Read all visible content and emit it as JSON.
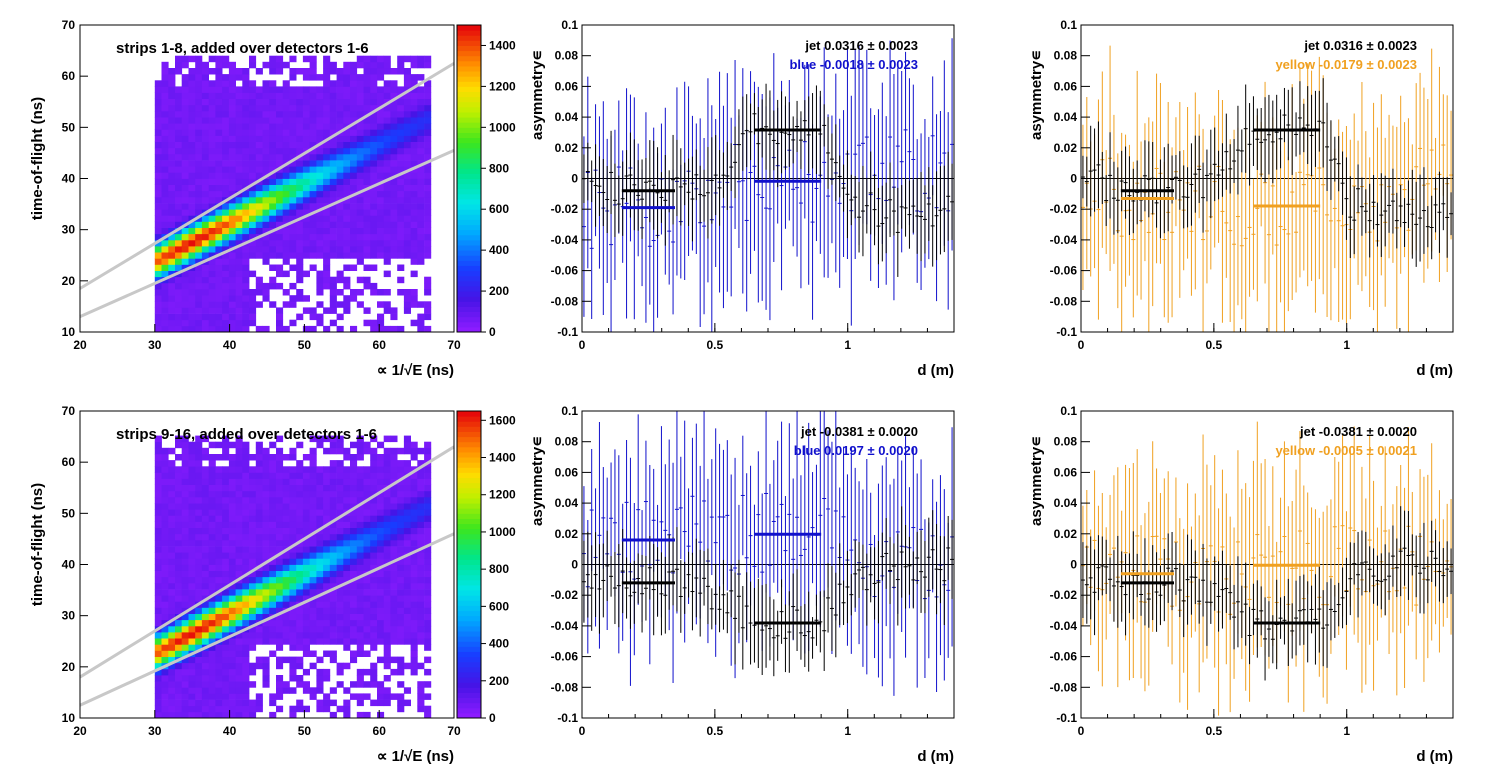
{
  "colors": {
    "blue": "#1010cc",
    "yellow": "#f0a020",
    "black": "#000000",
    "band_lines": "#c8c8c8",
    "hist_floor": "#8c1cff"
  },
  "chart_data": [
    {
      "type": "heatmap",
      "title": "strips 1-8, added over detectors 1-6",
      "xlabel": "∝ 1/√E (ns)",
      "ylabel": "time-of-flight (ns)",
      "xlim": [
        20,
        70
      ],
      "ylim": [
        10,
        70
      ],
      "x_ticks": [
        "20",
        "30",
        "40",
        "50",
        "60",
        "70"
      ],
      "y_ticks": [
        "10",
        "20",
        "30",
        "40",
        "50",
        "60",
        "70"
      ],
      "colorbar": {
        "min": 0,
        "max": 1500,
        "ticks": [
          "0",
          "200",
          "400",
          "600",
          "800",
          "1000",
          "1200",
          "1400"
        ]
      },
      "bands": [
        {
          "x": [
            20,
            70
          ],
          "y": [
            18.5,
            62.5
          ]
        },
        {
          "x": [
            20,
            70
          ],
          "y": [
            13.0,
            45.5
          ]
        }
      ],
      "peak": {
        "x": 35,
        "y": 27.5,
        "value": 1500
      },
      "x_range_filled": [
        30,
        66
      ],
      "y_range_filled": [
        10,
        63
      ]
    },
    {
      "type": "scatter",
      "xlabel": "d (m)",
      "ylabel": "asymmetry∊",
      "xlim": [
        0,
        1.4
      ],
      "ylim": [
        -0.1,
        0.1
      ],
      "x_ticks": [
        "0",
        "0.5",
        "1"
      ],
      "y_ticks": [
        "-0.1",
        "-0.08",
        "-0.06",
        "-0.04",
        "-0.02",
        "0",
        "0.02",
        "0.04",
        "0.06",
        "0.08",
        "0.1"
      ],
      "legend": [
        "jet  0.0316 ± 0.0023",
        "blue  -0.0018 ± 0.0023"
      ],
      "series": [
        {
          "name": "jet",
          "color_key": "black",
          "err": 0.024,
          "plateaus": [
            {
              "x": [
                0.15,
                0.35
              ],
              "y": -0.008
            },
            {
              "x": [
                0.65,
                0.9
              ],
              "y": 0.0316
            }
          ],
          "profile": [
            [
              0,
              0.005
            ],
            [
              0.1,
              -0.005
            ],
            [
              0.15,
              -0.008
            ],
            [
              0.35,
              -0.008
            ],
            [
              0.5,
              0.0
            ],
            [
              0.6,
              0.025
            ],
            [
              0.65,
              0.0316
            ],
            [
              0.9,
              0.0316
            ],
            [
              1.0,
              -0.015
            ],
            [
              1.2,
              -0.025
            ],
            [
              1.4,
              -0.02
            ]
          ]
        },
        {
          "name": "blue",
          "color_key": "blue",
          "err": 0.06,
          "plateaus": [
            {
              "x": [
                0.15,
                0.35
              ],
              "y": -0.019
            },
            {
              "x": [
                0.65,
                0.9
              ],
              "y": -0.0018
            }
          ],
          "profile": [
            [
              0,
              -0.02
            ],
            [
              0.15,
              -0.019
            ],
            [
              0.35,
              -0.019
            ],
            [
              0.5,
              -0.005
            ],
            [
              0.65,
              -0.0018
            ],
            [
              0.9,
              -0.0018
            ],
            [
              1.1,
              0.01
            ],
            [
              1.4,
              0.0
            ]
          ]
        }
      ]
    },
    {
      "type": "scatter",
      "xlabel": "d (m)",
      "ylabel": "asymmetry∊",
      "xlim": [
        0,
        1.4
      ],
      "ylim": [
        -0.1,
        0.1
      ],
      "x_ticks": [
        "0",
        "0.5",
        "1"
      ],
      "y_ticks": [
        "-0.1",
        "-0.08",
        "-0.06",
        "-0.04",
        "-0.02",
        "0",
        "0.02",
        "0.04",
        "0.06",
        "0.08",
        "0.1"
      ],
      "legend": [
        "jet  0.0316 ± 0.0023",
        "yellow  -0.0179 ± 0.0023"
      ],
      "series": [
        {
          "name": "jet",
          "color_key": "black",
          "err": 0.024,
          "plateaus": [
            {
              "x": [
                0.15,
                0.35
              ],
              "y": -0.008
            },
            {
              "x": [
                0.65,
                0.9
              ],
              "y": 0.0316
            }
          ],
          "profile": [
            [
              0,
              0.005
            ],
            [
              0.1,
              -0.005
            ],
            [
              0.15,
              -0.008
            ],
            [
              0.35,
              -0.008
            ],
            [
              0.5,
              0.0
            ],
            [
              0.6,
              0.025
            ],
            [
              0.65,
              0.0316
            ],
            [
              0.9,
              0.0316
            ],
            [
              1.0,
              -0.015
            ],
            [
              1.2,
              -0.025
            ],
            [
              1.4,
              -0.02
            ]
          ]
        },
        {
          "name": "yellow",
          "color_key": "yellow",
          "err": 0.06,
          "plateaus": [
            {
              "x": [
                0.15,
                0.35
              ],
              "y": -0.013
            },
            {
              "x": [
                0.65,
                0.9
              ],
              "y": -0.0179
            }
          ],
          "profile": [
            [
              0,
              -0.01
            ],
            [
              0.15,
              -0.013
            ],
            [
              0.35,
              -0.013
            ],
            [
              0.5,
              -0.015
            ],
            [
              0.65,
              -0.0179
            ],
            [
              0.9,
              -0.0179
            ],
            [
              1.0,
              -0.035
            ],
            [
              1.2,
              -0.01
            ],
            [
              1.4,
              0.0
            ]
          ]
        }
      ]
    },
    {
      "type": "heatmap",
      "title": "strips 9-16, added over detectors 1-6",
      "xlabel": "∝ 1/√E (ns)",
      "ylabel": "time-of-flight (ns)",
      "xlim": [
        20,
        70
      ],
      "ylim": [
        10,
        70
      ],
      "x_ticks": [
        "20",
        "30",
        "40",
        "50",
        "60",
        "70"
      ],
      "y_ticks": [
        "10",
        "20",
        "30",
        "40",
        "50",
        "60",
        "70"
      ],
      "colorbar": {
        "min": 0,
        "max": 1650,
        "ticks": [
          "0",
          "200",
          "400",
          "600",
          "800",
          "1000",
          "1200",
          "1400",
          "1600"
        ]
      },
      "bands": [
        {
          "x": [
            20,
            70
          ],
          "y": [
            18.0,
            63.0
          ]
        },
        {
          "x": [
            20,
            70
          ],
          "y": [
            12.5,
            46.0
          ]
        }
      ],
      "peak": {
        "x": 35,
        "y": 26.5,
        "value": 1650
      },
      "x_range_filled": [
        30,
        66
      ],
      "y_range_filled": [
        10,
        65
      ]
    },
    {
      "type": "scatter",
      "xlabel": "d (m)",
      "ylabel": "asymmetry∊",
      "xlim": [
        0,
        1.4
      ],
      "ylim": [
        -0.1,
        0.1
      ],
      "x_ticks": [
        "0",
        "0.5",
        "1"
      ],
      "y_ticks": [
        "-0.1",
        "-0.08",
        "-0.06",
        "-0.04",
        "-0.02",
        "0",
        "0.02",
        "0.04",
        "0.06",
        "0.08",
        "0.1"
      ],
      "legend": [
        "jet -0.0381 ± 0.0020",
        "blue  0.0197 ± 0.0020"
      ],
      "series": [
        {
          "name": "jet",
          "color_key": "black",
          "err": 0.024,
          "plateaus": [
            {
              "x": [
                0.15,
                0.35
              ],
              "y": -0.012
            },
            {
              "x": [
                0.65,
                0.9
              ],
              "y": -0.0381
            }
          ],
          "profile": [
            [
              0,
              -0.01
            ],
            [
              0.15,
              -0.012
            ],
            [
              0.35,
              -0.012
            ],
            [
              0.5,
              -0.02
            ],
            [
              0.65,
              -0.0381
            ],
            [
              0.9,
              -0.0381
            ],
            [
              1.0,
              -0.01
            ],
            [
              1.2,
              0.0
            ],
            [
              1.4,
              0.0
            ]
          ]
        },
        {
          "name": "blue",
          "color_key": "blue",
          "err": 0.06,
          "plateaus": [
            {
              "x": [
                0.15,
                0.35
              ],
              "y": 0.016
            },
            {
              "x": [
                0.65,
                0.9
              ],
              "y": 0.0197
            }
          ],
          "profile": [
            [
              0,
              0.01
            ],
            [
              0.15,
              0.016
            ],
            [
              0.35,
              0.016
            ],
            [
              0.5,
              0.02
            ],
            [
              0.65,
              0.0197
            ],
            [
              0.9,
              0.0197
            ],
            [
              1.1,
              0.005
            ],
            [
              1.4,
              0.0
            ]
          ]
        }
      ]
    },
    {
      "type": "scatter",
      "xlabel": "d (m)",
      "ylabel": "asymmetry∊",
      "xlim": [
        0,
        1.4
      ],
      "ylim": [
        -0.1,
        0.1
      ],
      "x_ticks": [
        "0",
        "0.5",
        "1"
      ],
      "y_ticks": [
        "-0.1",
        "-0.08",
        "-0.06",
        "-0.04",
        "-0.02",
        "0",
        "0.02",
        "0.04",
        "0.06",
        "0.08",
        "0.1"
      ],
      "legend": [
        "jet -0.0381 ± 0.0020",
        "yellow -0.0005 ± 0.0021"
      ],
      "series": [
        {
          "name": "jet",
          "color_key": "black",
          "err": 0.024,
          "plateaus": [
            {
              "x": [
                0.15,
                0.35
              ],
              "y": -0.012
            },
            {
              "x": [
                0.65,
                0.9
              ],
              "y": -0.0381
            }
          ],
          "profile": [
            [
              0,
              -0.01
            ],
            [
              0.15,
              -0.012
            ],
            [
              0.35,
              -0.012
            ],
            [
              0.5,
              -0.02
            ],
            [
              0.65,
              -0.0381
            ],
            [
              0.9,
              -0.0381
            ],
            [
              1.0,
              -0.01
            ],
            [
              1.2,
              0.0
            ],
            [
              1.4,
              0.0
            ]
          ]
        },
        {
          "name": "yellow",
          "color_key": "yellow",
          "err": 0.06,
          "plateaus": [
            {
              "x": [
                0.15,
                0.35
              ],
              "y": -0.006
            },
            {
              "x": [
                0.65,
                0.9
              ],
              "y": -0.0005
            }
          ],
          "profile": [
            [
              0,
              0.0
            ],
            [
              0.15,
              -0.006
            ],
            [
              0.35,
              -0.006
            ],
            [
              0.5,
              -0.01
            ],
            [
              0.65,
              -0.0005
            ],
            [
              0.9,
              -0.0005
            ],
            [
              1.1,
              0.0
            ],
            [
              1.4,
              0.0
            ]
          ]
        }
      ]
    }
  ]
}
